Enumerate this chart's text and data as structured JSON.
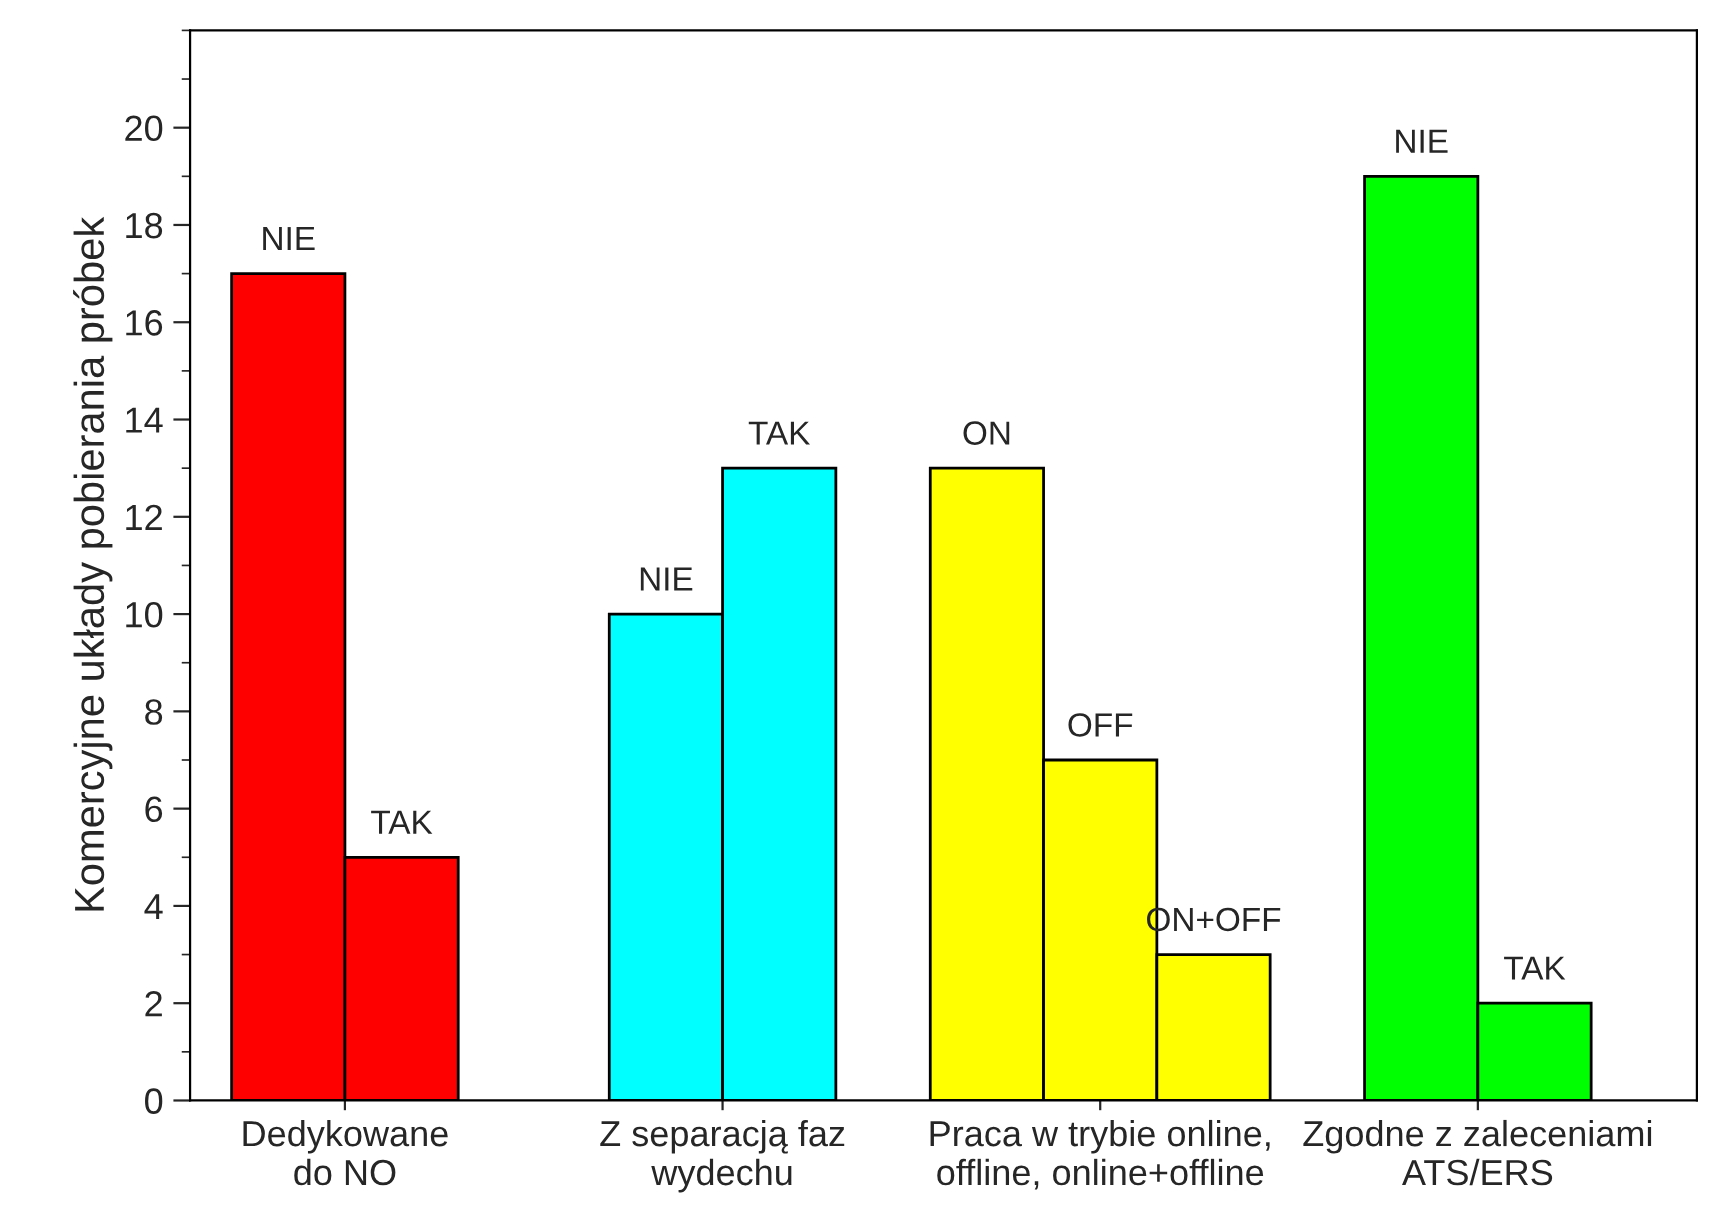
{
  "chart_data": {
    "type": "bar",
    "ylabel": "Komercyjne układy pobierania próbek",
    "categories": [
      "Dedykowane\ndo NO",
      "Z separacją faz\nwydechu",
      "Praca w trybie online,\noffline, online+offline",
      "Zgodne z zaleceniami\nATS/ERS"
    ],
    "series": [
      {
        "colors": [
          "#ff0000",
          "#00ffff",
          "#ffff00",
          "#00ff00"
        ],
        "values": [
          17,
          10,
          13,
          19
        ],
        "value_labels": [
          "NIE",
          "NIE",
          "ON",
          "NIE"
        ]
      },
      {
        "colors": [
          "#ff0000",
          "#00ffff",
          "#ffff00",
          "#00ff00"
        ],
        "values": [
          5,
          13,
          7,
          2
        ],
        "value_labels": [
          "TAK",
          "TAK",
          "OFF",
          "TAK"
        ]
      },
      {
        "colors": [
          "#ff0000",
          "#00ffff",
          "#ffff00",
          "#00ff00"
        ],
        "values": [
          null,
          null,
          3,
          null
        ],
        "value_labels": [
          null,
          null,
          "ON+OFF",
          null
        ]
      }
    ],
    "ylim": [
      0,
      22
    ],
    "yticks": [
      0,
      2,
      4,
      6,
      8,
      10,
      12,
      14,
      16,
      18,
      20
    ],
    "grid": false,
    "legend": false
  }
}
